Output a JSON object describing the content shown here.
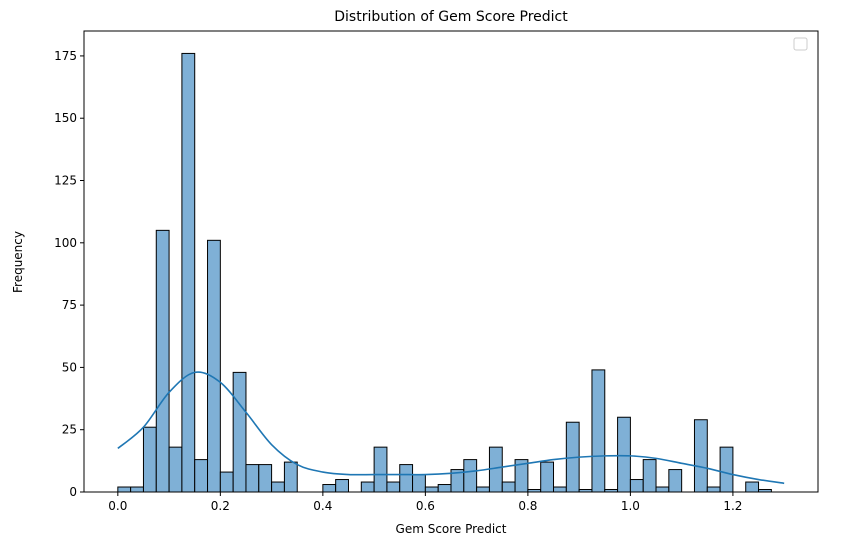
{
  "chart_data": {
    "type": "bar",
    "title": "Distribution of Gem Score Predict",
    "xlabel": "Gem Score Predict",
    "ylabel": "Frequency",
    "xlim": [
      -0.066,
      1.366
    ],
    "ylim": [
      0,
      185
    ],
    "xticks": [
      "0.0",
      "0.2",
      "0.4",
      "0.6",
      "0.8",
      "1.0",
      "1.2"
    ],
    "xtick_values": [
      0.0,
      0.2,
      0.4,
      0.6,
      0.8,
      1.0,
      1.2
    ],
    "yticks": [
      "0",
      "25",
      "50",
      "75",
      "100",
      "125",
      "150",
      "175"
    ],
    "ytick_values": [
      0,
      25,
      50,
      75,
      100,
      125,
      150,
      175
    ],
    "grid": false,
    "legend": "top-right (empty)",
    "bin_start": 0.0,
    "bin_width": 0.025,
    "values": [
      2,
      2,
      26,
      105,
      18,
      176,
      13,
      101,
      8,
      48,
      11,
      11,
      4,
      12,
      0,
      0,
      3,
      5,
      0,
      4,
      18,
      4,
      11,
      7,
      2,
      3,
      9,
      13,
      2,
      18,
      4,
      13,
      1,
      12,
      2,
      28,
      1,
      49,
      1,
      30,
      5,
      13,
      2,
      9,
      0,
      29,
      2,
      18,
      0,
      4,
      1
    ],
    "kde": {
      "x": [
        0.0,
        0.05,
        0.1,
        0.15,
        0.2,
        0.25,
        0.3,
        0.35,
        0.4,
        0.45,
        0.5,
        0.55,
        0.6,
        0.65,
        0.7,
        0.75,
        0.8,
        0.85,
        0.9,
        0.95,
        1.0,
        1.05,
        1.1,
        1.15,
        1.2,
        1.25,
        1.3
      ],
      "y": [
        17.5,
        26,
        40,
        48,
        44,
        32,
        19,
        11,
        8,
        7,
        7,
        7,
        7,
        7.5,
        8.5,
        10,
        11.5,
        13,
        14,
        14.5,
        14.5,
        13.5,
        11.5,
        9.5,
        7,
        5,
        3.5
      ]
    },
    "colors": {
      "bar_fill": "#7fb0d6",
      "bar_edge": "#000000",
      "kde_line": "#1f77b4"
    }
  }
}
